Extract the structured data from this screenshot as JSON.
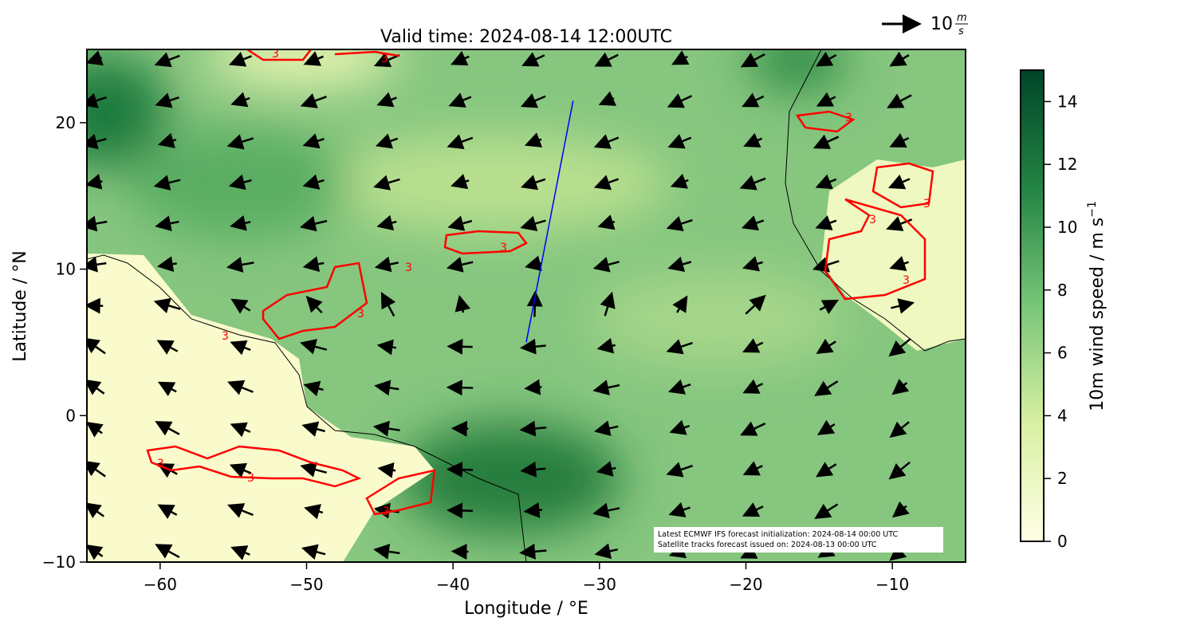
{
  "chart_data": {
    "type": "map",
    "title": "Valid time: 2024-08-14 12:00UTC",
    "xlabel": "Longitude / °E",
    "ylabel": "Latitude / °N",
    "xlim": [
      -65,
      -5
    ],
    "ylim": [
      -10,
      25
    ],
    "xticks": [
      {
        "value": -60,
        "label": "−60"
      },
      {
        "value": -50,
        "label": "−50"
      },
      {
        "value": -40,
        "label": "−40"
      },
      {
        "value": -30,
        "label": "−30"
      },
      {
        "value": -20,
        "label": "−20"
      },
      {
        "value": -10,
        "label": "−10"
      }
    ],
    "yticks": [
      {
        "value": -10,
        "label": "−10"
      },
      0,
      10,
      20
    ],
    "colorbar": {
      "label": "10m wind speed / m s",
      "label_exponent": "−1",
      "lim": [
        0,
        15
      ],
      "ticks": [
        0,
        2,
        4,
        6,
        8,
        10,
        12,
        14
      ],
      "colors": [
        "#ffffe5",
        "#d9f0a3",
        "#78c679",
        "#238443",
        "#004529"
      ]
    },
    "contour_label": "3",
    "track": {
      "color": "#0000ff",
      "lon": [
        -35,
        -31.8
      ],
      "lat": [
        5,
        21.5
      ]
    },
    "reference_vector": {
      "value": 10,
      "unit_numerator": "m",
      "unit_denominator": "s"
    },
    "annotation": [
      "Latest ECMWF IFS forecast initialization: 2024-08-14 00:00 UTC",
      "Satellite tracks forecast issued on: 2024-08-13 00:00 UTC"
    ]
  }
}
